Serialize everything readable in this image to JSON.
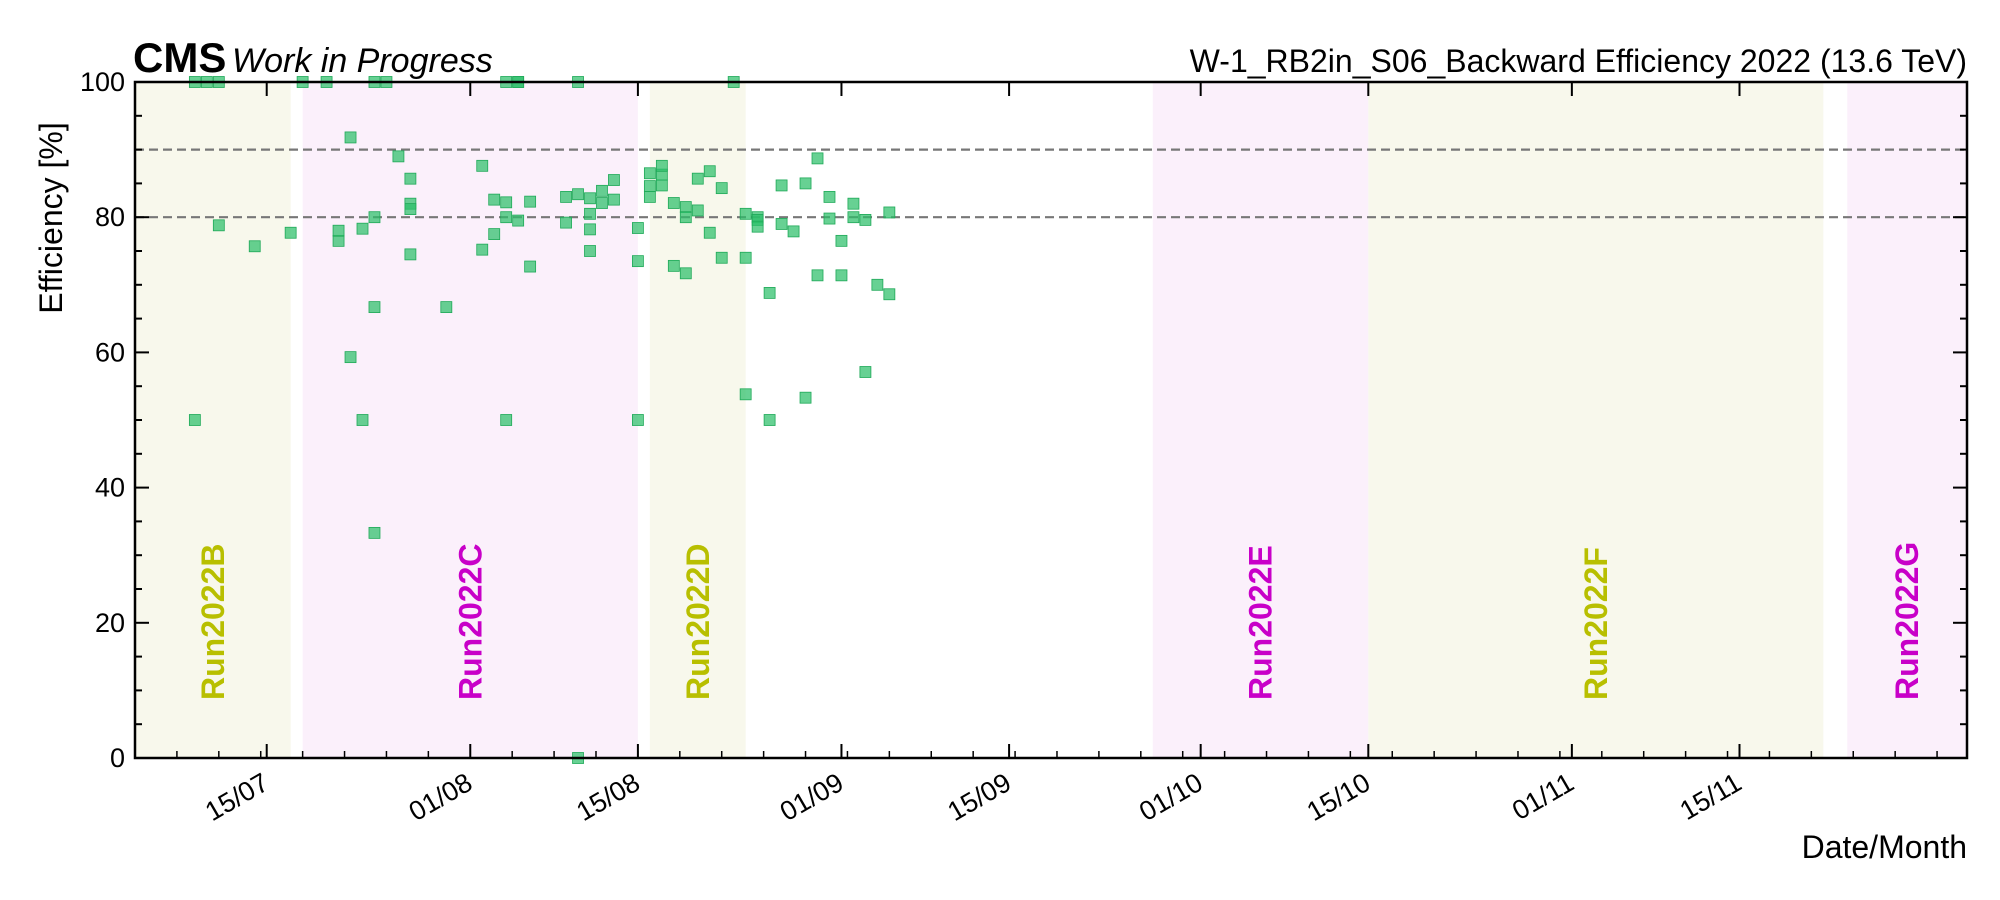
{
  "header": {
    "experiment": "CMS",
    "status": "Work in Progress",
    "title": "W-1_RB2in_S06_Backward Efficiency 2022 (13.6 TeV)"
  },
  "chart_data": {
    "type": "scatter",
    "xlabel": "Date/Month",
    "ylabel": "Efficiency [%]",
    "xlim": [
      "2022-07-04",
      "2022-12-04"
    ],
    "ylim": [
      0,
      100
    ],
    "x_ticks": [
      {
        "date": "2022-07-15",
        "label": "15/07"
      },
      {
        "date": "2022-08-01",
        "label": "01/08"
      },
      {
        "date": "2022-08-15",
        "label": "15/08"
      },
      {
        "date": "2022-09-01",
        "label": "01/09"
      },
      {
        "date": "2022-09-15",
        "label": "15/09"
      },
      {
        "date": "2022-10-01",
        "label": "01/10"
      },
      {
        "date": "2022-10-15",
        "label": "15/10"
      },
      {
        "date": "2022-11-01",
        "label": "01/11"
      },
      {
        "date": "2022-11-15",
        "label": "15/11"
      }
    ],
    "y_ticks": [
      0,
      20,
      40,
      60,
      80,
      100
    ],
    "reference_lines": [
      80,
      90
    ],
    "marker_color": "#2dbf6a",
    "run_periods": [
      {
        "name": "Run2022B",
        "start": "2022-07-04",
        "end": "2022-07-17",
        "color": "#b8bf00",
        "fill": "#f8f8ec"
      },
      {
        "name": "Run2022C",
        "start": "2022-07-18",
        "end": "2022-08-15",
        "color": "#c800c8",
        "fill": "#fbf0fb"
      },
      {
        "name": "Run2022D",
        "start": "2022-08-16",
        "end": "2022-08-24",
        "color": "#b8bf00",
        "fill": "#f8f8ec"
      },
      {
        "name": "Run2022E",
        "start": "2022-09-27",
        "end": "2022-10-15",
        "color": "#c800c8",
        "fill": "#fbf0fb"
      },
      {
        "name": "Run2022F",
        "start": "2022-10-15",
        "end": "2022-11-22",
        "color": "#b8bf00",
        "fill": "#f8f8ec"
      },
      {
        "name": "Run2022G",
        "start": "2022-11-24",
        "end": "2022-12-04",
        "color": "#c800c8",
        "fill": "#fbf0fb"
      }
    ],
    "points": [
      [
        "2022-07-09",
        50
      ],
      [
        "2022-07-09",
        100
      ],
      [
        "2022-07-10",
        100
      ],
      [
        "2022-07-11",
        100
      ],
      [
        "2022-07-11",
        78.8
      ],
      [
        "2022-07-14",
        75.7
      ],
      [
        "2022-07-18",
        100
      ],
      [
        "2022-07-17",
        77.7
      ],
      [
        "2022-07-20",
        100
      ],
      [
        "2022-07-21",
        76.5
      ],
      [
        "2022-07-21",
        78
      ],
      [
        "2022-07-22",
        91.8
      ],
      [
        "2022-07-22",
        59.3
      ],
      [
        "2022-07-23",
        50
      ],
      [
        "2022-07-23",
        78.3
      ],
      [
        "2022-07-24",
        33.3
      ],
      [
        "2022-07-24",
        100
      ],
      [
        "2022-07-24",
        80
      ],
      [
        "2022-07-24",
        66.7
      ],
      [
        "2022-07-25",
        100
      ],
      [
        "2022-07-26",
        89
      ],
      [
        "2022-07-27",
        85.7
      ],
      [
        "2022-07-27",
        82
      ],
      [
        "2022-07-27",
        81.2
      ],
      [
        "2022-07-27",
        74.5
      ],
      [
        "2022-07-30",
        66.7
      ],
      [
        "2022-08-02",
        87.6
      ],
      [
        "2022-08-02",
        75.2
      ],
      [
        "2022-08-03",
        82.6
      ],
      [
        "2022-08-03",
        77.5
      ],
      [
        "2022-08-04",
        100
      ],
      [
        "2022-08-04",
        50
      ],
      [
        "2022-08-04",
        82.2
      ],
      [
        "2022-08-04",
        80
      ],
      [
        "2022-08-05",
        100
      ],
      [
        "2022-08-05",
        100
      ],
      [
        "2022-08-05",
        79.5
      ],
      [
        "2022-08-06",
        82.3
      ],
      [
        "2022-08-06",
        72.7
      ],
      [
        "2022-08-09",
        83
      ],
      [
        "2022-08-09",
        79.2
      ],
      [
        "2022-08-10",
        83.4
      ],
      [
        "2022-08-10",
        100
      ],
      [
        "2022-08-10",
        0
      ],
      [
        "2022-08-11",
        82.8
      ],
      [
        "2022-08-11",
        80.5
      ],
      [
        "2022-08-11",
        78.2
      ],
      [
        "2022-08-11",
        75
      ],
      [
        "2022-08-12",
        83.9
      ],
      [
        "2022-08-12",
        82.1
      ],
      [
        "2022-08-13",
        85.5
      ],
      [
        "2022-08-13",
        82.6
      ],
      [
        "2022-08-15",
        73.5
      ],
      [
        "2022-08-15",
        78.4
      ],
      [
        "2022-08-15",
        50
      ],
      [
        "2022-08-16",
        83
      ],
      [
        "2022-08-16",
        84.6
      ],
      [
        "2022-08-16",
        86.5
      ],
      [
        "2022-08-17",
        84.7
      ],
      [
        "2022-08-17",
        86.3
      ],
      [
        "2022-08-17",
        87.6
      ],
      [
        "2022-08-18",
        82.1
      ],
      [
        "2022-08-18",
        72.8
      ],
      [
        "2022-08-19",
        71.7
      ],
      [
        "2022-08-19",
        81.5
      ],
      [
        "2022-08-19",
        80
      ],
      [
        "2022-08-20",
        81
      ],
      [
        "2022-08-20",
        85.7
      ],
      [
        "2022-08-21",
        86.8
      ],
      [
        "2022-08-21",
        77.7
      ],
      [
        "2022-08-22",
        84.3
      ],
      [
        "2022-08-22",
        74
      ],
      [
        "2022-08-23",
        100
      ],
      [
        "2022-08-24",
        74
      ],
      [
        "2022-08-24",
        80.5
      ],
      [
        "2022-08-24",
        53.8
      ],
      [
        "2022-08-25",
        80
      ],
      [
        "2022-08-25",
        79.6
      ],
      [
        "2022-08-25",
        78.6
      ],
      [
        "2022-08-26",
        50
      ],
      [
        "2022-08-26",
        68.8
      ],
      [
        "2022-08-27",
        84.7
      ],
      [
        "2022-08-27",
        79
      ],
      [
        "2022-08-28",
        77.9
      ],
      [
        "2022-08-29",
        85
      ],
      [
        "2022-08-29",
        53.3
      ],
      [
        "2022-08-30",
        71.4
      ],
      [
        "2022-08-30",
        88.7
      ],
      [
        "2022-08-31",
        83
      ],
      [
        "2022-08-31",
        79.8
      ],
      [
        "2022-09-01",
        76.5
      ],
      [
        "2022-09-01",
        71.4
      ],
      [
        "2022-09-02",
        82
      ],
      [
        "2022-09-02",
        80
      ],
      [
        "2022-09-03",
        79.6
      ],
      [
        "2022-09-03",
        57.1
      ],
      [
        "2022-09-04",
        70
      ],
      [
        "2022-09-05",
        80.7
      ],
      [
        "2022-09-05",
        68.6
      ]
    ]
  }
}
